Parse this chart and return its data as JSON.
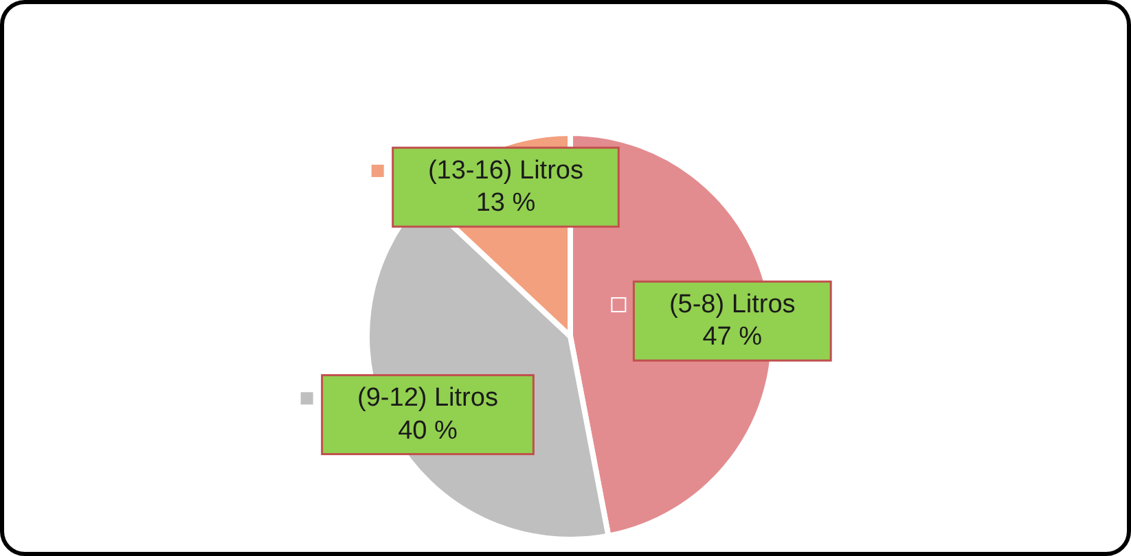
{
  "chart_data": {
    "type": "pie",
    "categories": [
      "(5-8) Litros",
      "(9-12) Litros",
      "(13-16) Litros"
    ],
    "values": [
      47,
      40,
      13
    ],
    "colors": [
      "#e38c8f",
      "#bfbfbf",
      "#f2a07e"
    ],
    "value_labels": [
      "47 %",
      "40 %",
      "13 %"
    ],
    "legend": "center"
  }
}
